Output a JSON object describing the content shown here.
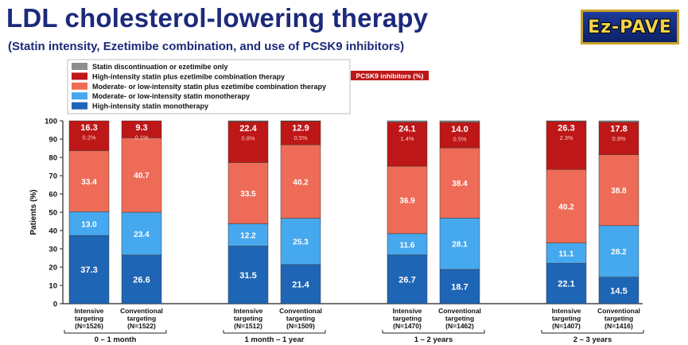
{
  "header": {
    "title": "LDL cholesterol-lowering therapy",
    "subtitle": "(Statin intensity, Ezetimibe combination, and use of PCSK9 inhibitors)",
    "logo_text": "Ez-PAVE"
  },
  "chart_data": {
    "type": "bar",
    "stacked": true,
    "ylabel": "Patients (%)",
    "ylim": [
      0,
      100
    ],
    "yticks": [
      0,
      10,
      20,
      30,
      40,
      50,
      60,
      70,
      80,
      90,
      100
    ],
    "grid": false,
    "legend_placement": "top-left",
    "pcsk9_legend": "PCSK9 inhibitors (%)",
    "groups": [
      "0 – 1 month",
      "1 month – 1 year",
      "1 – 2 years",
      "2 – 3 years"
    ],
    "bars": [
      {
        "group": 0,
        "label": [
          "Intensive",
          "targeting",
          "(N=1526)"
        ],
        "values": [
          37.3,
          13.0,
          33.4,
          16.3,
          0.0
        ],
        "pcsk9": 0.2
      },
      {
        "group": 0,
        "label": [
          "Conventional",
          "targeting",
          "(N=1522)"
        ],
        "values": [
          26.6,
          23.4,
          40.7,
          9.3,
          0.0
        ],
        "pcsk9": 0.1
      },
      {
        "group": 1,
        "label": [
          "Intensive",
          "targeting",
          "(N=1512)"
        ],
        "values": [
          31.5,
          12.2,
          33.5,
          22.4,
          0.4
        ],
        "pcsk9": 0.8
      },
      {
        "group": 1,
        "label": [
          "Conventional",
          "targeting",
          "(N=1509)"
        ],
        "values": [
          21.4,
          25.3,
          40.2,
          12.9,
          0.2
        ],
        "pcsk9": 0.5
      },
      {
        "group": 2,
        "label": [
          "Intensive",
          "targeting",
          "(N=1470)"
        ],
        "values": [
          26.7,
          11.6,
          36.9,
          24.1,
          0.7
        ],
        "pcsk9": 1.4
      },
      {
        "group": 2,
        "label": [
          "Conventional",
          "targeting",
          "(N=1462)"
        ],
        "values": [
          18.7,
          28.1,
          38.4,
          14.0,
          0.8
        ],
        "pcsk9": 0.5
      },
      {
        "group": 3,
        "label": [
          "Intensive",
          "targeting",
          "(N=1407)"
        ],
        "values": [
          22.1,
          11.1,
          40.2,
          26.3,
          0.3
        ],
        "pcsk9": 2.3
      },
      {
        "group": 3,
        "label": [
          "Conventional",
          "targeting",
          "(N=1416)"
        ],
        "values": [
          14.5,
          28.2,
          38.8,
          17.8,
          0.7
        ],
        "pcsk9": 0.9
      }
    ],
    "series": [
      {
        "name": "High-intensity statin monotherapy",
        "color": "#1f65b5"
      },
      {
        "name": "Moderate- or low-intensity statin monotherapy",
        "color": "#46a8ee"
      },
      {
        "name": "Moderate- or low-intensity statin plus ezetimibe combination therapy",
        "color": "#ee6c57"
      },
      {
        "name": "High-intensity statin plus ezetimibe combination therapy",
        "color": "#be1717"
      },
      {
        "name": "Statin discontinuation or ezetimibe only",
        "color": "#8c8c8c"
      }
    ],
    "legend_order": [
      4,
      3,
      2,
      1,
      0
    ]
  }
}
